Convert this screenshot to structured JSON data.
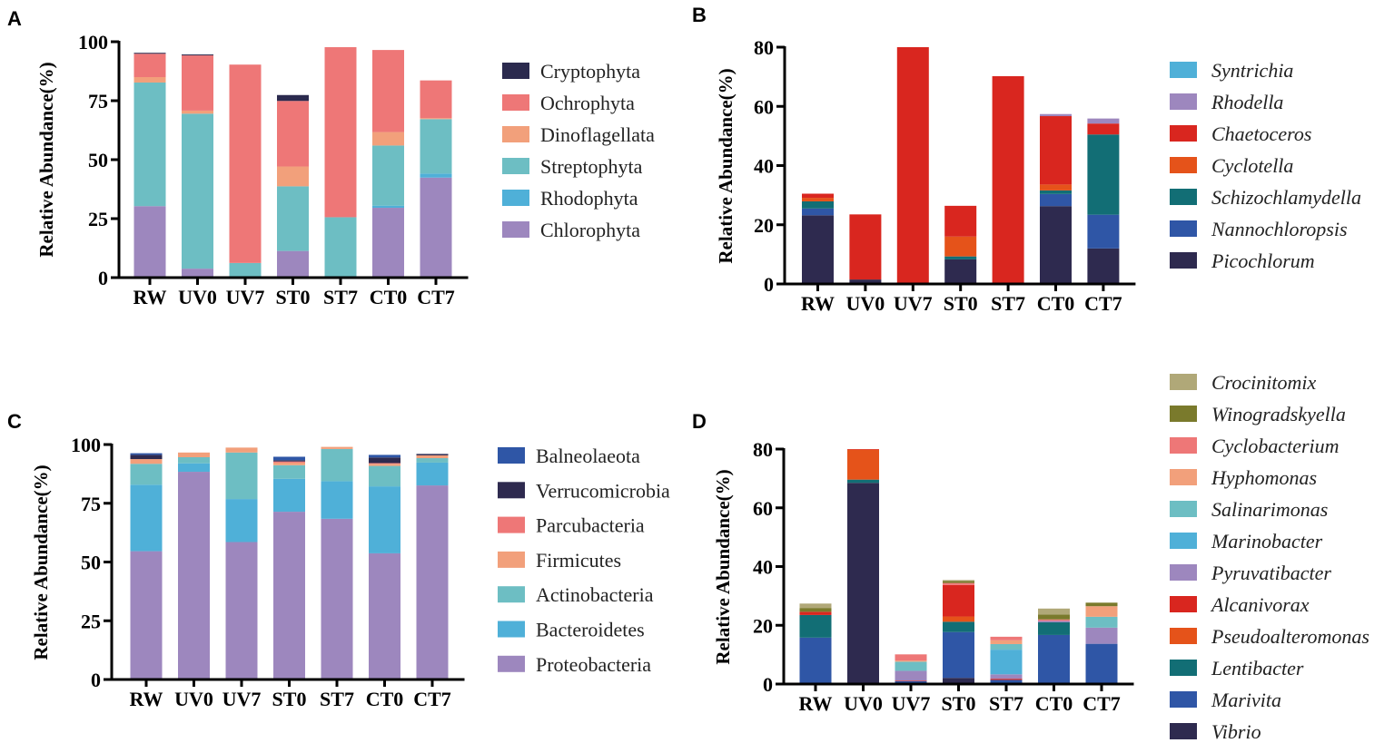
{
  "chart_data": [
    {
      "panel": "A",
      "type": "bar",
      "stacked": true,
      "ylabel": "Relative Abundance(%)",
      "ylim": [
        0,
        100
      ],
      "yticks": [
        "0",
        "25",
        "50",
        "75",
        "100"
      ],
      "categories": [
        "RW",
        "UV0",
        "UV7",
        "ST0",
        "ST7",
        "CT0",
        "CT7"
      ],
      "legend_italic": false,
      "series": [
        {
          "name": "Cryptophyta",
          "color": "#2b2a4e",
          "values": [
            0.4,
            0.4,
            0,
            2.5,
            0,
            0,
            0
          ]
        },
        {
          "name": "Ochrophyta",
          "color": "#ee7777",
          "values": [
            9.9,
            23.4,
            84.1,
            27.8,
            72.1,
            34.8,
            16.0
          ]
        },
        {
          "name": "Dinoflagellata",
          "color": "#f2a07b",
          "values": [
            2.3,
            1.3,
            0,
            8.4,
            0,
            5.7,
            0.4
          ]
        },
        {
          "name": "Streptophyta",
          "color": "#6dbec3",
          "values": [
            52.4,
            65.7,
            6.2,
            27.4,
            25.6,
            25.5,
            23.1
          ]
        },
        {
          "name": "Rhodophyta",
          "color": "#4fb0d8",
          "values": [
            0,
            0,
            0,
            0,
            0,
            0.9,
            1.7
          ]
        },
        {
          "name": "Chlorophyta",
          "color": "#9d87be",
          "values": [
            30.3,
            3.8,
            0,
            11.3,
            0,
            29.6,
            42.4
          ]
        }
      ]
    },
    {
      "panel": "B",
      "type": "bar",
      "stacked": true,
      "ylabel": "Relative Abundance(%)",
      "ylim": [
        0,
        80
      ],
      "yticks": [
        "0",
        "20",
        "40",
        "60",
        "80"
      ],
      "categories": [
        "RW",
        "UV0",
        "UV7",
        "ST0",
        "ST7",
        "CT0",
        "CT7"
      ],
      "legend_italic": true,
      "series": [
        {
          "name": "Syntrichia",
          "color": "#4fb0d8",
          "values": [
            0,
            0,
            0,
            0,
            0,
            0,
            0
          ]
        },
        {
          "name": "Rhodella",
          "color": "#9d87be",
          "values": [
            0,
            0,
            0,
            0,
            0,
            0.7,
            1.7
          ]
        },
        {
          "name": "Chaetoceros",
          "color": "#d9261f",
          "values": [
            1.4,
            22.0,
            80.0,
            10.4,
            70.2,
            23.1,
            3.7
          ]
        },
        {
          "name": "Cyclotella",
          "color": "#e5531a",
          "values": [
            1.2,
            0,
            0,
            6.7,
            0,
            2.0,
            0
          ]
        },
        {
          "name": "Schizochlamydella",
          "color": "#126e75",
          "values": [
            2.4,
            0,
            0,
            1.0,
            0,
            1.2,
            27.1
          ]
        },
        {
          "name": "Nannochloropsis",
          "color": "#2f56a6",
          "values": [
            2.3,
            0,
            0,
            0,
            0,
            4.1,
            11.4
          ]
        },
        {
          "name": "Picochlorum",
          "color": "#2e2a4f",
          "values": [
            23.2,
            1.5,
            0,
            8.3,
            0,
            26.3,
            12.0
          ]
        }
      ]
    },
    {
      "panel": "C",
      "type": "bar",
      "stacked": true,
      "ylabel": "Relative Abundance(%)",
      "ylim": [
        0,
        100
      ],
      "yticks": [
        "0",
        "25",
        "50",
        "75",
        "100"
      ],
      "categories": [
        "RW",
        "UV0",
        "UV7",
        "ST0",
        "ST7",
        "CT0",
        "CT7"
      ],
      "legend_italic": false,
      "series": [
        {
          "name": "Balneolaeota",
          "color": "#2f56a6",
          "values": [
            0.7,
            0,
            0,
            1.5,
            0,
            1.1,
            0
          ]
        },
        {
          "name": "Verrucomicrobia",
          "color": "#2e2a4f",
          "values": [
            1.8,
            0,
            0,
            0.5,
            0,
            2.4,
            0.6
          ]
        },
        {
          "name": "Parcubacteria",
          "color": "#ee7777",
          "values": [
            0,
            0,
            0,
            0.5,
            0,
            0.3,
            0
          ]
        },
        {
          "name": "Firmicutes",
          "color": "#f2a07b",
          "values": [
            2.0,
            2.0,
            2.1,
            1.1,
            0.9,
            0.9,
            1.2
          ]
        },
        {
          "name": "Actinobacteria",
          "color": "#6dbec3",
          "values": [
            8.9,
            2.6,
            19.8,
            5.8,
            13.7,
            8.7,
            1.9
          ]
        },
        {
          "name": "Bacteroidetes",
          "color": "#4fb0d8",
          "values": [
            28.3,
            3.6,
            18.3,
            14.0,
            16.0,
            28.5,
            9.7
          ]
        },
        {
          "name": "Proteobacteria",
          "color": "#9d87be",
          "values": [
            54.6,
            88.4,
            58.5,
            71.4,
            68.4,
            53.7,
            82.6
          ]
        }
      ]
    },
    {
      "panel": "D",
      "type": "bar",
      "stacked": true,
      "ylabel": "Relative Abundance(%)",
      "ylim": [
        0,
        80
      ],
      "yticks": [
        "0",
        "20",
        "40",
        "60",
        "80"
      ],
      "categories": [
        "RW",
        "UV0",
        "UV7",
        "ST0",
        "ST7",
        "CT0",
        "CT7"
      ],
      "legend_italic": true,
      "series": [
        {
          "name": "Crocinitomix",
          "color": "#b0a878",
          "values": [
            1.5,
            0,
            0,
            0.3,
            0,
            2.0,
            0
          ]
        },
        {
          "name": "Winogradskyella",
          "color": "#7a7a2c",
          "values": [
            1.3,
            0,
            0,
            0.7,
            0,
            1.7,
            1.2
          ]
        },
        {
          "name": "Cyclobacterium",
          "color": "#ee7777",
          "values": [
            0,
            0,
            2.1,
            0.7,
            1.2,
            0.5,
            0
          ]
        },
        {
          "name": "Hyphomonas",
          "color": "#f2a07b",
          "values": [
            0,
            0,
            0.4,
            0,
            1.3,
            0,
            3.6
          ]
        },
        {
          "name": "Salinarimonas",
          "color": "#6dbec3",
          "values": [
            0,
            0,
            3.1,
            0,
            1.9,
            0,
            3.7
          ]
        },
        {
          "name": "Marinobacter",
          "color": "#4fb0d8",
          "values": [
            0,
            0,
            0,
            0,
            8.4,
            0,
            0
          ]
        },
        {
          "name": "Pyruvatibacter",
          "color": "#9d87be",
          "values": [
            0,
            0,
            3.3,
            0,
            1.5,
            0.5,
            5.5
          ]
        },
        {
          "name": "Alcanivorax",
          "color": "#d9261f",
          "values": [
            1.1,
            0.2,
            0.2,
            10.7,
            0.4,
            0,
            0
          ]
        },
        {
          "name": "Pseudoalteromonas",
          "color": "#e5531a",
          "values": [
            0,
            10.2,
            0,
            1.8,
            0,
            0,
            0
          ]
        },
        {
          "name": "Lentibacter",
          "color": "#126e75",
          "values": [
            7.7,
            1.1,
            0,
            3.5,
            0,
            4.3,
            0
          ]
        },
        {
          "name": "Marivita",
          "color": "#2f56a6",
          "values": [
            15.8,
            0,
            1.0,
            15.6,
            1.4,
            16.7,
            13.7
          ]
        },
        {
          "name": "Vibrio",
          "color": "#2e2a4f",
          "values": [
            0,
            68.5,
            0,
            2.1,
            0,
            0,
            0
          ]
        }
      ]
    }
  ]
}
